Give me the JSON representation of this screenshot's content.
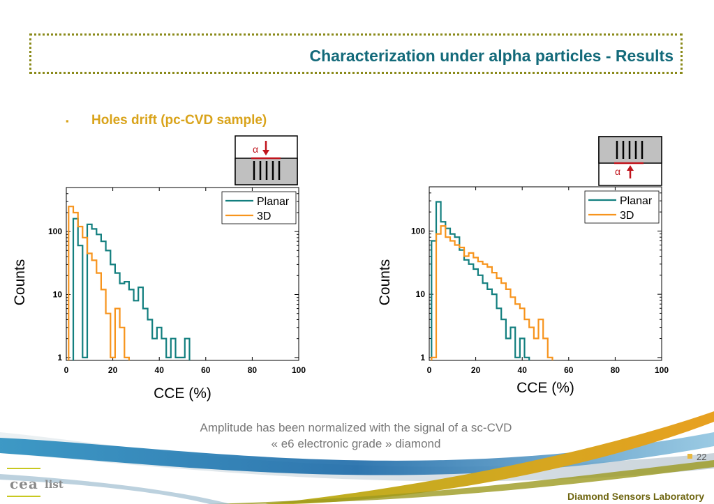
{
  "slide": {
    "title": "Characterization under alpha particles - Results",
    "bullet_marker": "▪",
    "bullet": "Holes drift (pc-CVD sample)",
    "caption_line1": "Amplitude has been normalized with the signal  of a sc-CVD",
    "caption_line2": "« e6 electronic grade » diamond",
    "page_number": "22",
    "footer": "Diamond Sensors Laboratory",
    "logo_text": "cea",
    "logo_text2": "list",
    "alpha_symbol": "α"
  },
  "colors": {
    "planar": "#137f7f",
    "3d": "#f7941d",
    "title": "#136a7a",
    "bullet": "#d9a31a",
    "alpha": "#c0141c"
  },
  "chart_data": [
    {
      "type": "line",
      "xlabel": "CCE (%)",
      "ylabel": "Counts",
      "xlim": [
        0,
        100
      ],
      "ylim": [
        0.9,
        500
      ],
      "yscale": "log",
      "xticks": [
        "0",
        "20",
        "40",
        "60",
        "80",
        "100"
      ],
      "yticks": [
        "1",
        "10",
        "100"
      ],
      "legend": "top-right",
      "series": [
        {
          "name": "Planar",
          "x": [
            4,
            6,
            8,
            10,
            12,
            14,
            16,
            18,
            20,
            22,
            24,
            26,
            28,
            30,
            32,
            34,
            36,
            38,
            40,
            42,
            44,
            46,
            48,
            50,
            52
          ],
          "y": [
            160,
            60,
            1,
            130,
            110,
            90,
            70,
            50,
            30,
            22,
            15,
            16,
            12,
            8,
            13,
            6,
            4,
            2,
            3,
            2,
            1,
            2,
            1,
            1,
            2
          ]
        },
        {
          "name": "3D",
          "x": [
            2,
            4,
            6,
            8,
            10,
            12,
            14,
            16,
            18,
            20,
            22,
            24,
            26
          ],
          "y": [
            250,
            200,
            120,
            80,
            45,
            35,
            22,
            12,
            5,
            1,
            6,
            3,
            1
          ]
        }
      ]
    },
    {
      "type": "line",
      "xlabel": "CCE (%)",
      "ylabel": "Counts",
      "xlim": [
        0,
        100
      ],
      "ylim": [
        0.9,
        500
      ],
      "yscale": "log",
      "xticks": [
        "0",
        "20",
        "40",
        "60",
        "80",
        "100"
      ],
      "yticks": [
        "1",
        "10",
        "100"
      ],
      "legend": "top-right",
      "series": [
        {
          "name": "Planar",
          "x": [
            2,
            4,
            6,
            8,
            10,
            12,
            14,
            16,
            18,
            20,
            22,
            24,
            26,
            28,
            30,
            32,
            34,
            36,
            38,
            40,
            42
          ],
          "y": [
            70,
            290,
            140,
            110,
            90,
            80,
            50,
            35,
            30,
            25,
            20,
            15,
            12,
            10,
            6,
            4,
            2,
            3,
            1,
            2,
            1
          ]
        },
        {
          "name": "3D",
          "x": [
            2,
            4,
            6,
            8,
            10,
            12,
            14,
            16,
            18,
            20,
            22,
            24,
            26,
            28,
            30,
            32,
            34,
            36,
            38,
            40,
            42,
            44,
            46,
            48,
            50,
            52
          ],
          "y": [
            1,
            90,
            120,
            80,
            70,
            60,
            55,
            40,
            45,
            38,
            33,
            30,
            27,
            22,
            18,
            15,
            12,
            9,
            7,
            6,
            4,
            3,
            2,
            4,
            2,
            1
          ]
        }
      ]
    }
  ]
}
